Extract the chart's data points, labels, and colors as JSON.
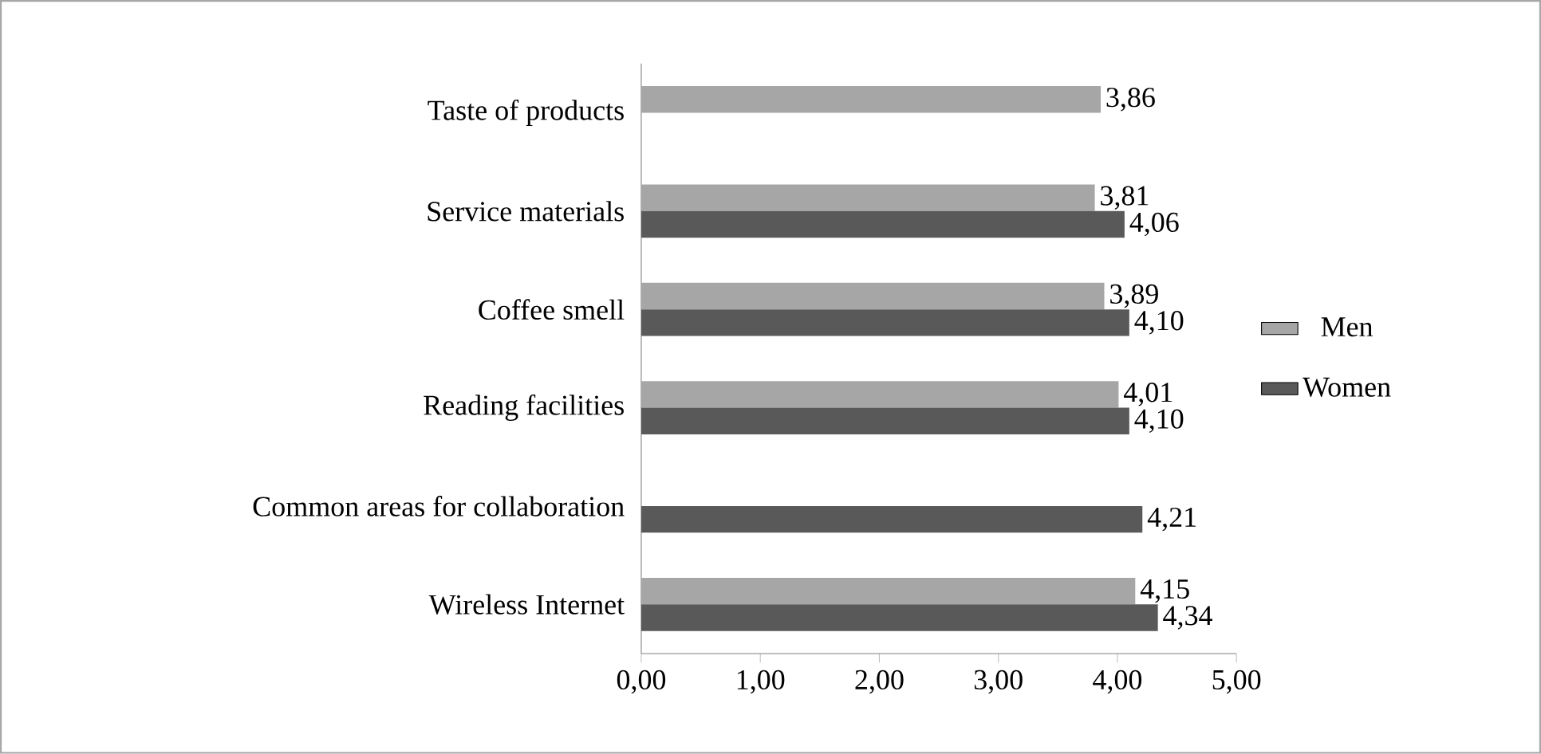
{
  "chart_data": {
    "type": "bar",
    "orientation": "horizontal",
    "categories": [
      "Taste of products",
      "Service materials",
      "Coffee smell",
      "Reading facilities",
      "Common areas for collaboration",
      "Wireless Internet"
    ],
    "series": [
      {
        "name": "Men",
        "color": "#a6a6a6",
        "values": [
          3.86,
          3.81,
          3.89,
          4.01,
          null,
          4.15
        ],
        "value_labels": [
          "3,86",
          "3,81",
          "3,89",
          "4,01",
          null,
          "4,15"
        ]
      },
      {
        "name": "Women",
        "color": "#595959",
        "values": [
          null,
          4.06,
          4.1,
          4.1,
          4.21,
          4.34
        ],
        "value_labels": [
          null,
          "4,06",
          "4,10",
          "4,10",
          "4,21",
          "4,34"
        ]
      }
    ],
    "xlim": [
      0,
      5
    ],
    "xticks": [
      {
        "value": 0,
        "label": "0,00"
      },
      {
        "value": 1,
        "label": "1,00"
      },
      {
        "value": 2,
        "label": "2,00"
      },
      {
        "value": 3,
        "label": "3,00"
      },
      {
        "value": 4,
        "label": "4,00"
      },
      {
        "value": 5,
        "label": "5,00"
      }
    ],
    "legend": "right",
    "grid": false
  }
}
